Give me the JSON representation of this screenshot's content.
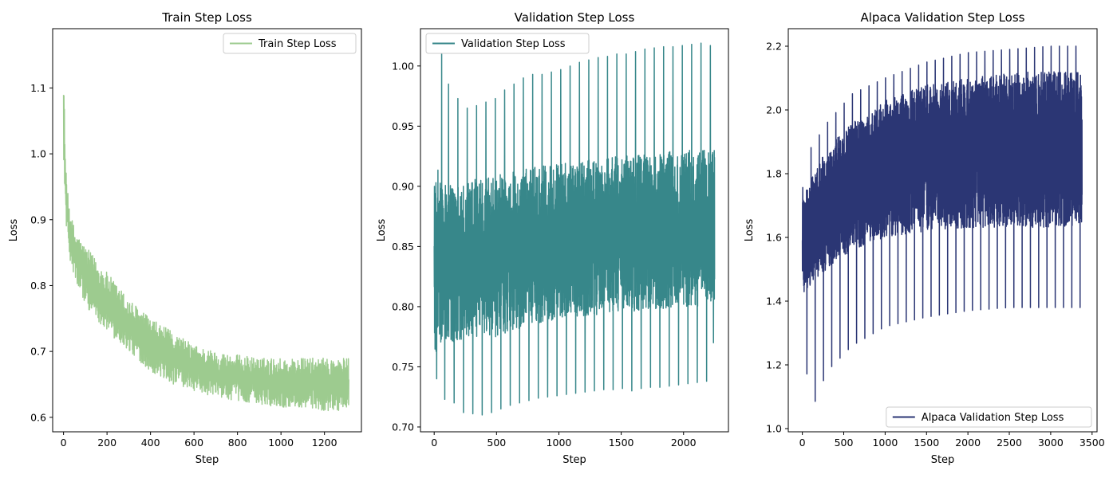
{
  "chart_data": [
    {
      "type": "line",
      "title": "Train Step Loss",
      "xlabel": "Step",
      "ylabel": "Loss",
      "xlim": [
        -50,
        1370
      ],
      "ylim": [
        0.578,
        1.19
      ],
      "xticks": [
        0,
        200,
        400,
        600,
        800,
        1000,
        1200
      ],
      "yticks": [
        0.6,
        0.7,
        0.8,
        0.9,
        1.0,
        1.1
      ],
      "ytick_labels": [
        "0.6",
        "0.7",
        "0.8",
        "0.9",
        "1.0",
        "1.1"
      ],
      "legend_position": "upper right",
      "series": [
        {
          "name": "Train Step Loss",
          "color": "#9dcb8f",
          "n_steps": 1313,
          "envelope": {
            "step": [
              0,
              5,
              10,
              20,
              40,
              60,
              100,
              150,
              200,
              300,
              400,
              500,
              600,
              700,
              800,
              900,
              1000,
              1100,
              1200,
              1313
            ],
            "low": [
              1.0,
              0.95,
              0.9,
              0.86,
              0.82,
              0.8,
              0.77,
              0.75,
              0.73,
              0.7,
              0.67,
              0.65,
              0.64,
              0.63,
              0.625,
              0.62,
              0.615,
              0.615,
              0.61,
              0.61
            ],
            "high": [
              1.16,
              1.05,
              0.98,
              0.94,
              0.9,
              0.88,
              0.86,
              0.84,
              0.82,
              0.78,
              0.75,
              0.73,
              0.71,
              0.7,
              0.695,
              0.69,
              0.69,
              0.69,
              0.69,
              0.69
            ]
          }
        }
      ]
    },
    {
      "type": "line",
      "title": "Validation Step Loss",
      "xlabel": "Step",
      "ylabel": "Loss",
      "xlim": [
        -110,
        2360
      ],
      "ylim": [
        0.696,
        1.031
      ],
      "xticks": [
        0,
        500,
        1000,
        1500,
        2000
      ],
      "yticks": [
        0.7,
        0.75,
        0.8,
        0.85,
        0.9,
        0.95,
        1.0
      ],
      "ytick_labels": [
        "0.70",
        "0.75",
        "0.80",
        "0.85",
        "0.90",
        "0.95",
        "1.00"
      ],
      "legend_position": "upper left",
      "series": [
        {
          "name": "Validation Step Loss",
          "color": "#37878a",
          "n_steps": 2250,
          "envelope": {
            "step": [
              0,
              100,
              500,
              1000,
              1500,
              2000,
              2250
            ],
            "low": [
              0.76,
              0.77,
              0.775,
              0.79,
              0.795,
              0.8,
              0.8
            ],
            "high": [
              0.92,
              0.9,
              0.91,
              0.92,
              0.925,
              0.93,
              0.93
            ]
          },
          "spikes_high": [
            [
              60,
              1.01
            ],
            [
              115,
              0.985
            ],
            [
              190,
              0.973
            ],
            [
              265,
              0.965
            ],
            [
              340,
              0.967
            ],
            [
              415,
              0.97
            ],
            [
              490,
              0.973
            ],
            [
              565,
              0.98
            ],
            [
              640,
              0.985
            ],
            [
              715,
              0.99
            ],
            [
              790,
              0.993
            ],
            [
              865,
              0.993
            ],
            [
              940,
              0.995
            ],
            [
              1015,
              0.997
            ],
            [
              1090,
              1.0
            ],
            [
              1165,
              1.003
            ],
            [
              1240,
              1.005
            ],
            [
              1315,
              1.007
            ],
            [
              1390,
              1.008
            ],
            [
              1465,
              1.01
            ],
            [
              1540,
              1.01
            ],
            [
              1615,
              1.012
            ],
            [
              1690,
              1.014
            ],
            [
              1765,
              1.015
            ],
            [
              1840,
              1.016
            ],
            [
              1915,
              1.016
            ],
            [
              1990,
              1.017
            ],
            [
              2065,
              1.018
            ],
            [
              2140,
              1.019
            ],
            [
              2215,
              1.017
            ]
          ],
          "spikes_low": [
            [
              20,
              0.74
            ],
            [
              85,
              0.723
            ],
            [
              160,
              0.72
            ],
            [
              235,
              0.712
            ],
            [
              310,
              0.711
            ],
            [
              385,
              0.71
            ],
            [
              460,
              0.712
            ],
            [
              535,
              0.715
            ],
            [
              610,
              0.718
            ],
            [
              685,
              0.72
            ],
            [
              760,
              0.722
            ],
            [
              835,
              0.724
            ],
            [
              910,
              0.725
            ],
            [
              985,
              0.726
            ],
            [
              1060,
              0.727
            ],
            [
              1135,
              0.728
            ],
            [
              1210,
              0.729
            ],
            [
              1285,
              0.73
            ],
            [
              1360,
              0.731
            ],
            [
              1435,
              0.731
            ],
            [
              1510,
              0.732
            ],
            [
              1585,
              0.73
            ],
            [
              1660,
              0.732
            ],
            [
              1735,
              0.733
            ],
            [
              1810,
              0.733
            ],
            [
              1885,
              0.734
            ],
            [
              1960,
              0.735
            ],
            [
              2035,
              0.736
            ],
            [
              2110,
              0.737
            ],
            [
              2185,
              0.738
            ],
            [
              2240,
              0.77
            ]
          ]
        }
      ]
    },
    {
      "type": "line",
      "title": "Alpaca Validation Step Loss",
      "xlabel": "Step",
      "ylabel": "Loss",
      "xlim": [
        -170,
        3560
      ],
      "ylim": [
        0.99,
        2.255
      ],
      "xticks": [
        0,
        500,
        1000,
        1500,
        2000,
        2500,
        3000,
        3500
      ],
      "yticks": [
        1.0,
        1.2,
        1.4,
        1.6,
        1.8,
        2.0,
        2.2
      ],
      "ytick_labels": [
        "1.0",
        "1.2",
        "1.4",
        "1.6",
        "1.8",
        "2.0",
        "2.2"
      ],
      "legend_position": "lower right",
      "series": [
        {
          "name": "Alpaca Validation Step Loss",
          "color": "#2b3674",
          "n_steps": 3380,
          "envelope": {
            "step": [
              0,
              100,
              300,
              600,
              1000,
              1500,
              2000,
              2500,
              3000,
              3380
            ],
            "low": [
              1.42,
              1.45,
              1.5,
              1.56,
              1.6,
              1.62,
              1.63,
              1.63,
              1.63,
              1.63
            ],
            "high": [
              1.72,
              1.78,
              1.88,
              1.96,
              2.03,
              2.08,
              2.1,
              2.12,
              2.12,
              2.12
            ]
          },
          "spike_period": 100,
          "spikes_high_curve": {
            "step": [
              0,
              100,
              300,
              600,
              1000,
              1500,
              2000,
              2500,
              3000,
              3380
            ],
            "value": [
              1.75,
              1.88,
              1.96,
              2.05,
              2.1,
              2.15,
              2.18,
              2.19,
              2.2,
              2.2
            ]
          },
          "spikes_low_curve": {
            "step": [
              0,
              100,
              300,
              600,
              1000,
              1500,
              2000,
              2500,
              3000,
              3380
            ],
            "value": [
              1.32,
              1.05,
              1.18,
              1.26,
              1.32,
              1.35,
              1.37,
              1.38,
              1.38,
              1.38
            ]
          }
        }
      ]
    }
  ]
}
